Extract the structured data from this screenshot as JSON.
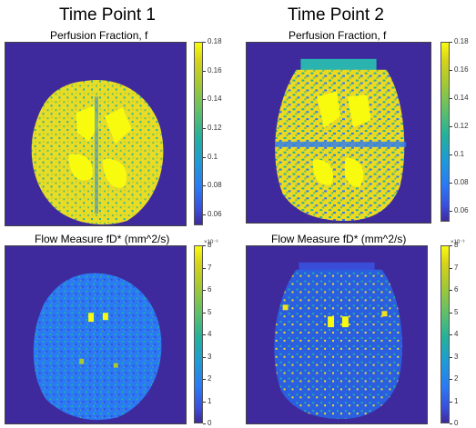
{
  "columns": [
    {
      "title": "Time Point 1"
    },
    {
      "title": "Time Point 2"
    }
  ],
  "panels": {
    "tp1_f": {
      "title": "Perfusion Fraction, f"
    },
    "tp2_f": {
      "title": "Perfusion Fraction, f"
    },
    "tp1_fd": {
      "title": "Flow Measure fD* (mm^2/s)"
    },
    "tp2_fd": {
      "title": "Flow Measure fD* (mm^2/s)"
    }
  },
  "colorbars": {
    "f": {
      "ticks": [
        "0.18",
        "0.16",
        "0.14",
        "0.12",
        "0.1",
        "0.08",
        "0.06"
      ]
    },
    "fd": {
      "ticks": [
        "8",
        "7",
        "6",
        "5",
        "4",
        "3",
        "2",
        "1",
        "0"
      ],
      "exponent": "×10⁻³"
    }
  },
  "colors": {
    "background_blue": "#3e2a9c",
    "tissue_yellow": "#f2e21c",
    "cyan": "#2bb3b0",
    "mid_blue": "#2a6fe0"
  }
}
